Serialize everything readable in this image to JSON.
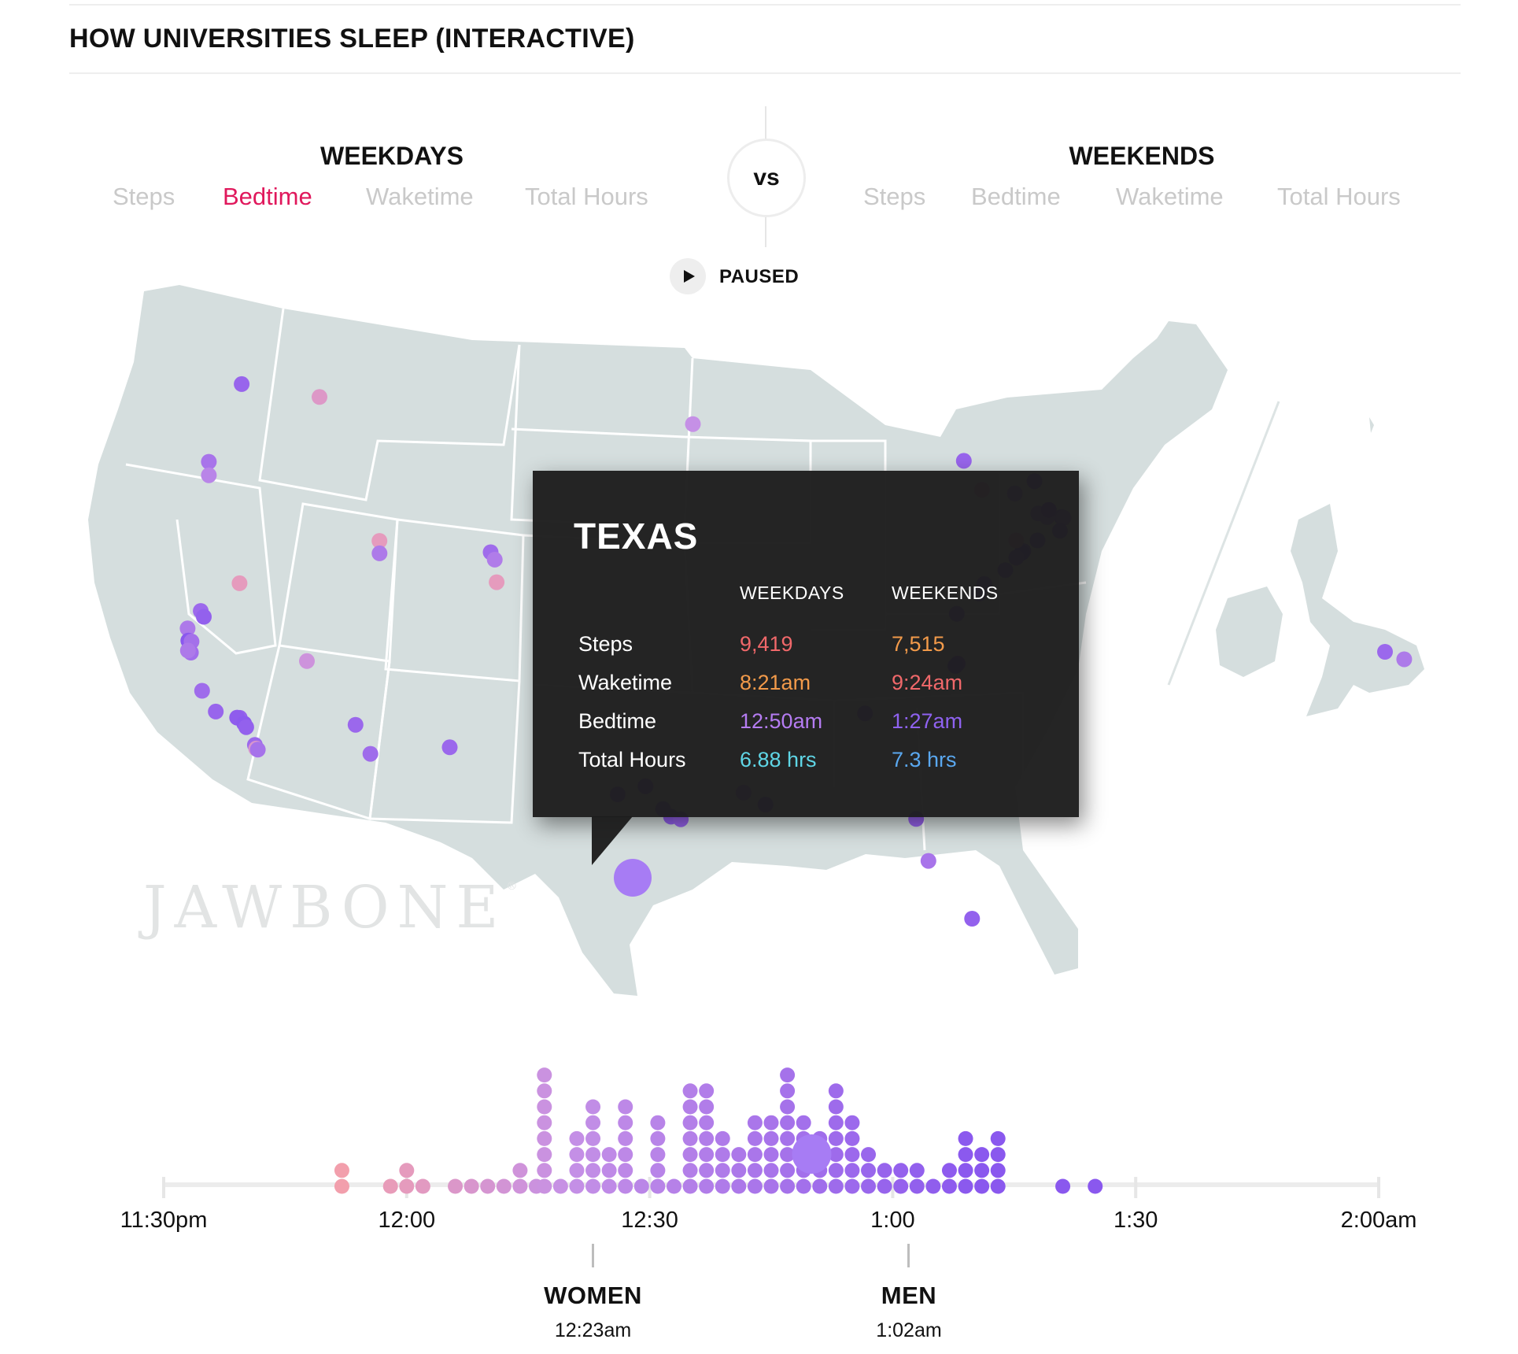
{
  "title": "HOW UNIVERSITIES SLEEP (INTERACTIVE)",
  "weekdays": {
    "heading": "WEEKDAYS",
    "metrics": [
      "Steps",
      "Bedtime",
      "Waketime",
      "Total Hours"
    ],
    "active": "Bedtime"
  },
  "vs_label": "vs",
  "weekends": {
    "heading": "WEEKENDS",
    "metrics": [
      "Steps",
      "Bedtime",
      "Waketime",
      "Total Hours"
    ]
  },
  "play_state": "PAUSED",
  "watermark": "JAWBONE",
  "tooltip": {
    "state": "TEXAS",
    "col_weekdays": "WEEKDAYS",
    "col_weekends": "WEEKENDS",
    "rows": [
      {
        "label": "Steps",
        "weekdays": "9,419",
        "weekends": "7,515",
        "wd_color": "#f0686a",
        "we_color": "#f29a4a"
      },
      {
        "label": "Waketime",
        "weekdays": "8:21am",
        "weekends": "9:24am",
        "wd_color": "#f29a4a",
        "we_color": "#f0686a"
      },
      {
        "label": "Bedtime",
        "weekdays": "12:50am",
        "weekends": "1:27am",
        "wd_color": "#b57cf2",
        "we_color": "#8f62f0"
      },
      {
        "label": "Total Hours",
        "weekdays": "6.88 hrs",
        "weekends": "7.3 hrs",
        "wd_color": "#5fd6e6",
        "we_color": "#5aa8f0"
      }
    ]
  },
  "colors": {
    "early": "#f5a0a8",
    "mid": "#c590e6",
    "late": "#8a58ee",
    "map_land": "#d5dede",
    "active_metric": "#e0185c"
  },
  "chart_data": {
    "type": "scatter",
    "description_metric": "Bedtime",
    "x_axis": {
      "ticks": [
        "11:30pm",
        "12:00",
        "12:30",
        "1:00",
        "1:30",
        "2:00am"
      ],
      "range_minutes_after_midnight": [
        -30,
        120
      ]
    },
    "gender_markers": [
      {
        "label": "WOMEN",
        "time": "12:23am",
        "minutes": 23
      },
      {
        "label": "MEN",
        "time": "1:02am",
        "minutes": 62
      }
    ],
    "highlighted": {
      "state": "TEXAS",
      "minutes": 50
    },
    "bedtime_columns": [
      {
        "minutes": -8,
        "count": 2
      },
      {
        "minutes": -2,
        "count": 1
      },
      {
        "minutes": 0,
        "count": 2
      },
      {
        "minutes": 2,
        "count": 1
      },
      {
        "minutes": 6,
        "count": 1
      },
      {
        "minutes": 8,
        "count": 1
      },
      {
        "minutes": 10,
        "count": 1
      },
      {
        "minutes": 12,
        "count": 1
      },
      {
        "minutes": 14,
        "count": 2
      },
      {
        "minutes": 16,
        "count": 1
      },
      {
        "minutes": 17,
        "count": 8
      },
      {
        "minutes": 19,
        "count": 1
      },
      {
        "minutes": 21,
        "count": 4
      },
      {
        "minutes": 23,
        "count": 6
      },
      {
        "minutes": 25,
        "count": 3
      },
      {
        "minutes": 27,
        "count": 6
      },
      {
        "minutes": 29,
        "count": 1
      },
      {
        "minutes": 31,
        "count": 5
      },
      {
        "minutes": 33,
        "count": 1
      },
      {
        "minutes": 35,
        "count": 7
      },
      {
        "minutes": 37,
        "count": 7
      },
      {
        "minutes": 39,
        "count": 4
      },
      {
        "minutes": 41,
        "count": 3
      },
      {
        "minutes": 43,
        "count": 5
      },
      {
        "minutes": 45,
        "count": 5
      },
      {
        "minutes": 47,
        "count": 8
      },
      {
        "minutes": 49,
        "count": 5
      },
      {
        "minutes": 51,
        "count": 4
      },
      {
        "minutes": 53,
        "count": 7
      },
      {
        "minutes": 55,
        "count": 5
      },
      {
        "minutes": 57,
        "count": 3
      },
      {
        "minutes": 59,
        "count": 2
      },
      {
        "minutes": 61,
        "count": 2
      },
      {
        "minutes": 63,
        "count": 2
      },
      {
        "minutes": 65,
        "count": 1
      },
      {
        "minutes": 67,
        "count": 2
      },
      {
        "minutes": 69,
        "count": 4
      },
      {
        "minutes": 71,
        "count": 3
      },
      {
        "minutes": 73,
        "count": 4
      },
      {
        "minutes": 81,
        "count": 1
      },
      {
        "minutes": 85,
        "count": 1
      }
    ],
    "map_points": [
      {
        "lon": -122.3,
        "lat": 47.6,
        "minutes": 58
      },
      {
        "lon": -117.0,
        "lat": 46.7,
        "minutes": 5
      },
      {
        "lon": -123.3,
        "lat": 44.6,
        "minutes": 45
      },
      {
        "lon": -123.1,
        "lat": 44.05,
        "minutes": 30
      },
      {
        "lon": -119.8,
        "lat": 39.5,
        "minutes": 0
      },
      {
        "lon": -122.3,
        "lat": 37.9,
        "minutes": 40
      },
      {
        "lon": -122.1,
        "lat": 37.4,
        "minutes": 70
      },
      {
        "lon": -121.9,
        "lat": 37.35,
        "minutes": 48
      },
      {
        "lon": -121.75,
        "lat": 38.55,
        "minutes": 55
      },
      {
        "lon": -121.5,
        "lat": 38.3,
        "minutes": 62
      },
      {
        "lon": -121.8,
        "lat": 36.9,
        "minutes": 50
      },
      {
        "lon": -122.0,
        "lat": 37.0,
        "minutes": 40
      },
      {
        "lon": -120.7,
        "lat": 35.3,
        "minutes": 52
      },
      {
        "lon": -119.7,
        "lat": 34.4,
        "minutes": 58
      },
      {
        "lon": -118.3,
        "lat": 34.05,
        "minutes": 60
      },
      {
        "lon": -118.45,
        "lat": 34.07,
        "minutes": 66
      },
      {
        "lon": -118.0,
        "lat": 33.8,
        "minutes": 68
      },
      {
        "lon": -117.85,
        "lat": 33.65,
        "minutes": 62
      },
      {
        "lon": -117.2,
        "lat": 32.9,
        "minutes": 55
      },
      {
        "lon": -117.1,
        "lat": 32.75,
        "minutes": 8
      },
      {
        "lon": -117.0,
        "lat": 32.7,
        "minutes": 46
      },
      {
        "lon": -115.1,
        "lat": 36.1,
        "minutes": 15
      },
      {
        "lon": -111.9,
        "lat": 40.7,
        "minutes": 0
      },
      {
        "lon": -111.8,
        "lat": 40.2,
        "minutes": 40
      },
      {
        "lon": -111.9,
        "lat": 33.4,
        "minutes": 56
      },
      {
        "lon": -110.9,
        "lat": 32.2,
        "minutes": 52
      },
      {
        "lon": -105.27,
        "lat": 40.0,
        "minutes": 52
      },
      {
        "lon": -105.0,
        "lat": 39.7,
        "minutes": 38
      },
      {
        "lon": -104.8,
        "lat": 38.8,
        "minutes": 0
      },
      {
        "lon": -93.2,
        "lat": 45.0,
        "minutes": 20
      },
      {
        "lon": -97.75,
        "lat": 30.28,
        "minutes": 50
      },
      {
        "lon": -96.3,
        "lat": 30.6,
        "minutes": 60
      },
      {
        "lon": -95.4,
        "lat": 29.7,
        "minutes": 52
      },
      {
        "lon": -95.0,
        "lat": 29.4,
        "minutes": 64
      },
      {
        "lon": -94.5,
        "lat": 29.3,
        "minutes": 60
      },
      {
        "lon": -91.2,
        "lat": 30.4,
        "minutes": 44
      },
      {
        "lon": -90.1,
        "lat": 29.95,
        "minutes": 58
      },
      {
        "lon": -84.4,
        "lat": 33.75,
        "minutes": 56
      },
      {
        "lon": -82.35,
        "lat": 29.65,
        "minutes": 60
      },
      {
        "lon": -82.0,
        "lat": 28.0,
        "minutes": 45
      },
      {
        "lon": -80.2,
        "lat": 25.8,
        "minutes": 62
      },
      {
        "lon": -106.7,
        "lat": 32.3,
        "minutes": 56
      },
      {
        "lon": -76.5,
        "lat": 44.2,
        "minutes": 58
      },
      {
        "lon": -75.7,
        "lat": 43.1,
        "minutes": 5
      },
      {
        "lon": -73.7,
        "lat": 43.1,
        "minutes": 40
      },
      {
        "lon": -72.3,
        "lat": 43.7,
        "minutes": 64
      },
      {
        "lon": -71.1,
        "lat": 42.37,
        "minutes": 55
      },
      {
        "lon": -71.0,
        "lat": 42.35,
        "minutes": 44
      },
      {
        "lon": -71.4,
        "lat": 41.8,
        "minutes": 50
      },
      {
        "lon": -72.0,
        "lat": 42.3,
        "minutes": 38
      },
      {
        "lon": -72.5,
        "lat": 42.4,
        "minutes": 42
      },
      {
        "lon": -71.8,
        "lat": 42.6,
        "minutes": 66
      },
      {
        "lon": -72.9,
        "lat": 41.3,
        "minutes": 58
      },
      {
        "lon": -73.9,
        "lat": 40.8,
        "minutes": 62
      },
      {
        "lon": -74.0,
        "lat": 40.73,
        "minutes": 70
      },
      {
        "lon": -74.4,
        "lat": 40.5,
        "minutes": 52
      },
      {
        "lon": -75.2,
        "lat": 39.95,
        "minutes": 60
      },
      {
        "lon": -76.6,
        "lat": 39.3,
        "minutes": 58
      },
      {
        "lon": -77.0,
        "lat": 38.9,
        "minutes": 50
      },
      {
        "lon": -78.5,
        "lat": 38.0,
        "minutes": 56
      },
      {
        "lon": -78.9,
        "lat": 36.0,
        "minutes": 68
      },
      {
        "lon": -79.05,
        "lat": 35.9,
        "minutes": 72
      },
      {
        "lon": -74.2,
        "lat": 41.2,
        "minutes": 8
      },
      {
        "lon": -0.1,
        "lat": 51.5,
        "minutes": 40
      },
      {
        "lon": -1.26,
        "lat": 51.75,
        "minutes": 56
      }
    ]
  }
}
